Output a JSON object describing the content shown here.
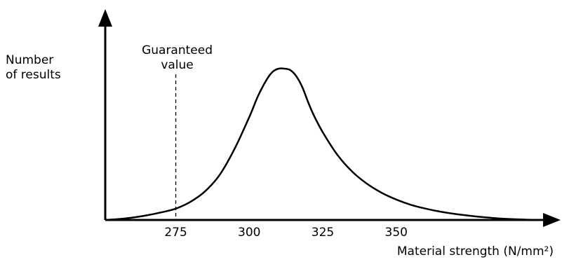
{
  "chart_data": {
    "type": "line",
    "title": "",
    "xlabel": "Material strength (N/mm²)",
    "ylabel_lines": [
      "Number",
      "of  results"
    ],
    "x_ticks": [
      275,
      300,
      325,
      350
    ],
    "xlim": [
      251,
      399
    ],
    "ylim": [
      0,
      1
    ],
    "grid": false,
    "legend": "none",
    "series": [
      {
        "x": [
          251,
          255,
          260,
          265,
          270,
          275,
          280,
          285,
          290,
          295,
          300,
          303,
          306,
          308,
          310,
          312,
          314,
          316,
          318,
          320,
          322,
          325,
          330,
          335,
          340,
          345,
          350,
          355,
          360,
          365,
          370,
          375,
          380,
          385,
          390,
          395,
          399
        ],
        "y": [
          0,
          0.005,
          0.015,
          0.03,
          0.05,
          0.075,
          0.12,
          0.19,
          0.3,
          0.47,
          0.68,
          0.82,
          0.93,
          0.98,
          1.0,
          1.0,
          0.99,
          0.95,
          0.88,
          0.78,
          0.69,
          0.58,
          0.43,
          0.32,
          0.24,
          0.18,
          0.135,
          0.1,
          0.075,
          0.055,
          0.04,
          0.028,
          0.018,
          0.01,
          0.005,
          0.002,
          0
        ]
      }
    ],
    "annotations": [
      {
        "x": 275,
        "text_lines": [
          "Guaranteed",
          "value"
        ],
        "style": "dashed"
      }
    ]
  }
}
